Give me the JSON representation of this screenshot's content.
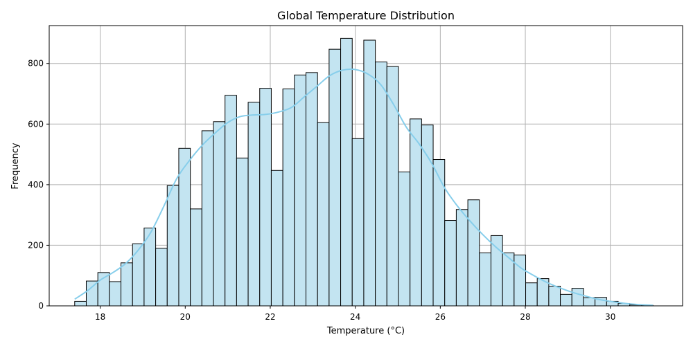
{
  "chart_data": {
    "type": "bar",
    "title": "Global Temperature Distribution",
    "xlabel": "Temperature (°C)",
    "ylabel": "Frequency",
    "xlim": [
      16.8,
      31.7
    ],
    "ylim": [
      0,
      925
    ],
    "x_ticks": [
      18,
      20,
      22,
      24,
      26,
      28,
      30
    ],
    "y_ticks": [
      0,
      200,
      400,
      600,
      800
    ],
    "grid": true,
    "bin_start": 17.4,
    "bin_width": 0.272,
    "values": [
      15,
      82,
      110,
      80,
      142,
      205,
      257,
      190,
      397,
      520,
      320,
      578,
      608,
      695,
      488,
      672,
      718,
      447,
      716,
      762,
      770,
      605,
      847,
      883,
      552,
      877,
      805,
      790,
      442,
      617,
      597,
      483,
      282,
      318,
      350,
      175,
      232,
      175,
      168,
      76,
      90,
      65,
      38,
      58,
      27,
      28,
      15,
      8,
      3,
      2
    ],
    "kde": {
      "x": [
        17.4,
        17.7,
        18.0,
        18.3,
        18.6,
        18.9,
        19.2,
        19.5,
        19.8,
        20.1,
        20.4,
        20.7,
        21.0,
        21.3,
        21.6,
        21.9,
        22.2,
        22.5,
        22.8,
        23.1,
        23.4,
        23.7,
        24.0,
        24.3,
        24.6,
        24.9,
        25.2,
        25.5,
        25.8,
        26.1,
        26.4,
        26.7,
        27.0,
        27.3,
        27.6,
        27.9,
        28.2,
        28.5,
        28.8,
        29.1,
        29.4,
        29.7,
        30.0,
        30.3,
        30.6,
        31.0
      ],
      "y": [
        22,
        50,
        85,
        110,
        140,
        185,
        245,
        330,
        420,
        480,
        530,
        570,
        605,
        625,
        630,
        632,
        640,
        655,
        690,
        725,
        760,
        778,
        780,
        765,
        730,
        665,
        590,
        535,
        470,
        390,
        330,
        280,
        235,
        195,
        160,
        125,
        100,
        78,
        60,
        45,
        33,
        22,
        15,
        9,
        5,
        2
      ]
    },
    "colors": {
      "bar_fill": "#c3e4f1",
      "bar_edge": "#000000",
      "kde_line": "#87ceeb",
      "grid": "#b0b0b0"
    }
  }
}
